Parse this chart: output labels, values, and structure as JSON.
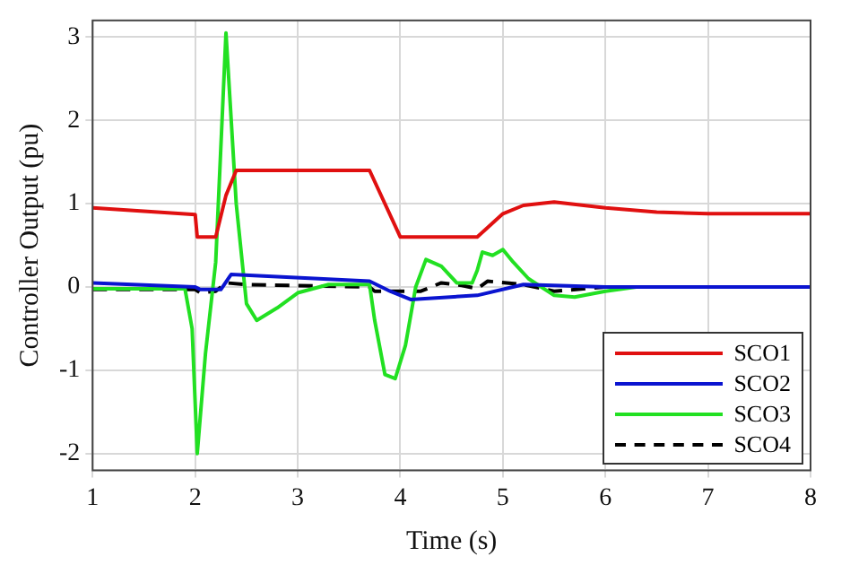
{
  "chart_data": {
    "type": "line",
    "xlabel": "Time (s)",
    "ylabel": "Controller Output (pu)",
    "xlim": [
      1,
      8
    ],
    "xticks": [
      1,
      2,
      3,
      4,
      5,
      6,
      7,
      8
    ],
    "ylim": [
      -2.2,
      3.2
    ],
    "yticks": [
      -2,
      -1,
      0,
      1,
      2,
      3
    ],
    "grid": true,
    "legend": "bottom right",
    "marker": "none",
    "series": [
      {
        "name": "SCO1",
        "color": "#e01010",
        "x": [
          1,
          2,
          2.02,
          2.2,
          2.3,
          2.4,
          3.7,
          4,
          4.75,
          5,
          5.2,
          5.5,
          6,
          6.5,
          7,
          8
        ],
        "values": [
          0.95,
          0.87,
          0.6,
          0.6,
          1.1,
          1.4,
          1.4,
          0.6,
          0.6,
          0.88,
          0.98,
          1.02,
          0.95,
          0.9,
          0.88,
          0.88
        ]
      },
      {
        "name": "SCO2",
        "color": "#0a14d0",
        "x": [
          1,
          2,
          2.05,
          2.25,
          2.35,
          3.7,
          3.9,
          4.1,
          4.75,
          5.2,
          6,
          8
        ],
        "values": [
          0.05,
          0,
          -0.03,
          -0.03,
          0.15,
          0.07,
          -0.05,
          -0.15,
          -0.1,
          0.03,
          0,
          0
        ]
      },
      {
        "name": "SCO3",
        "color": "#22e022",
        "x": [
          1,
          1.9,
          1.97,
          2.02,
          2.1,
          2.2,
          2.3,
          2.4,
          2.5,
          2.6,
          2.8,
          3,
          3.3,
          3.7,
          3.75,
          3.85,
          3.95,
          4.05,
          4.15,
          4.25,
          4.4,
          4.55,
          4.7,
          4.75,
          4.8,
          4.9,
          5,
          5.1,
          5.25,
          5.5,
          5.7,
          6,
          6.3,
          8
        ],
        "values": [
          -0.02,
          -0.02,
          -0.5,
          -2,
          -0.8,
          0.3,
          3.05,
          1,
          -0.2,
          -0.4,
          -0.25,
          -0.07,
          0.03,
          0.03,
          -0.4,
          -1.05,
          -1.1,
          -0.7,
          0,
          0.33,
          0.25,
          0.05,
          0.05,
          0.2,
          0.42,
          0.38,
          0.45,
          0.3,
          0.1,
          -0.1,
          -0.12,
          -0.05,
          0,
          0
        ]
      },
      {
        "name": "SCO4",
        "color": "#000000",
        "line_style": "dashed",
        "x": [
          1,
          2,
          2.05,
          2.2,
          2.3,
          2.5,
          3.7,
          3.75,
          4.2,
          4.4,
          4.6,
          4.75,
          4.85,
          5.2,
          5.5,
          6,
          8
        ],
        "values": [
          -0.03,
          -0.03,
          -0.07,
          -0.05,
          0.05,
          0.03,
          0,
          -0.05,
          -0.05,
          0.05,
          0.02,
          -0.02,
          0.07,
          0.03,
          -0.05,
          0,
          0
        ]
      }
    ]
  }
}
